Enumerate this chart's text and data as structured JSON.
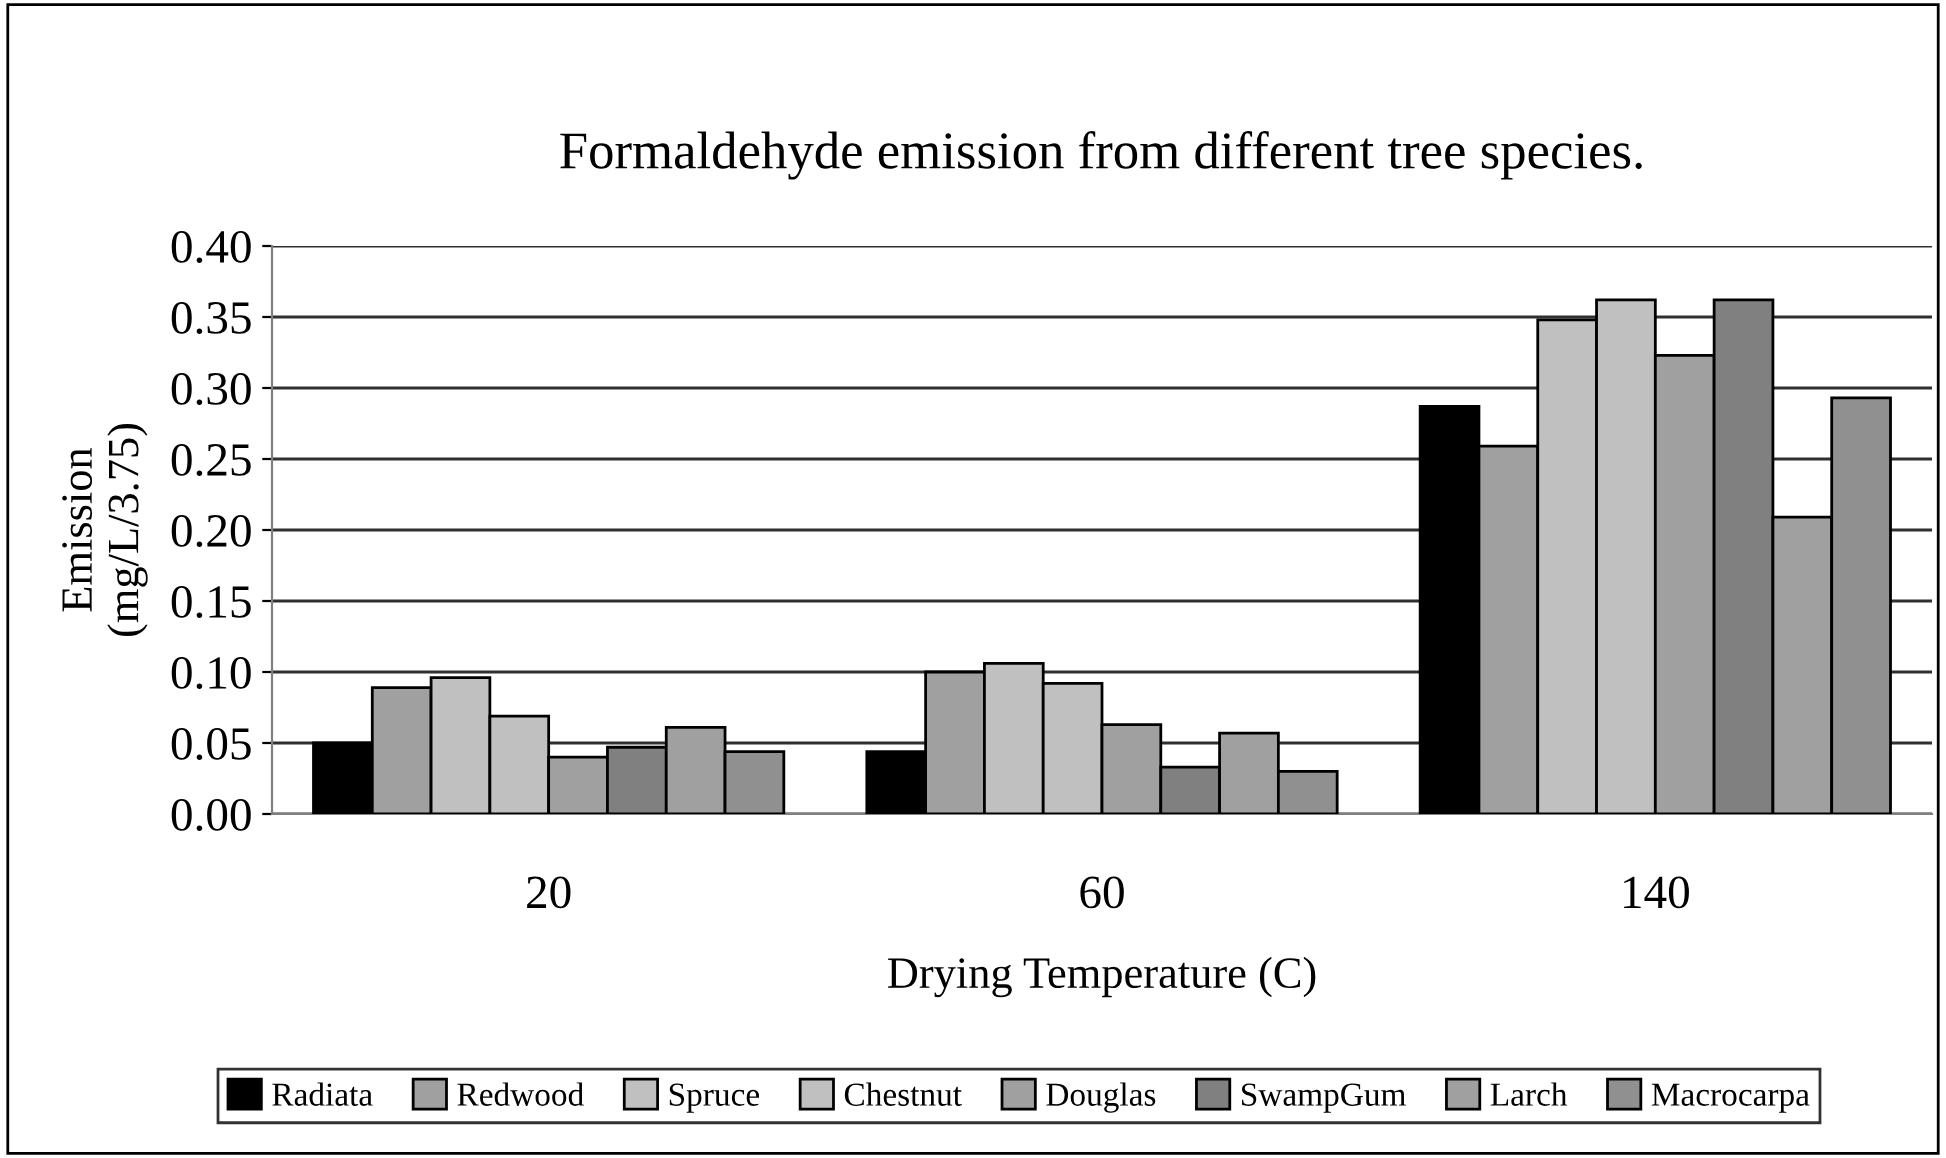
{
  "chart_data": {
    "type": "bar",
    "title": "Formaldehyde emission from different tree species.",
    "xlabel": "Drying Temperature (C)",
    "ylabel": "Emission\n(mg/L/3.75)",
    "categories": [
      "20",
      "60",
      "140"
    ],
    "series": [
      {
        "name": "Radiata",
        "color": "#000000",
        "values": [
          0.05,
          0.044,
          0.287
        ]
      },
      {
        "name": "Redwood",
        "color": "#a0a0a0",
        "values": [
          0.089,
          0.1,
          0.259
        ]
      },
      {
        "name": "Spruce",
        "color": "#c0c0c0",
        "values": [
          0.096,
          0.106,
          0.348
        ]
      },
      {
        "name": "Chestnut",
        "color": "#c0c0c0",
        "values": [
          0.069,
          0.092,
          0.362
        ]
      },
      {
        "name": "Douglas",
        "color": "#a0a0a0",
        "values": [
          0.04,
          0.063,
          0.323
        ]
      },
      {
        "name": "SwampGum",
        "color": "#808080",
        "values": [
          0.047,
          0.033,
          0.362
        ]
      },
      {
        "name": "Larch",
        "color": "#a0a0a0",
        "values": [
          0.061,
          0.057,
          0.209
        ]
      },
      {
        "name": "Macrocarpa",
        "color": "#909090",
        "values": [
          0.044,
          0.03,
          0.293
        ]
      }
    ],
    "ylim": [
      0,
      0.4
    ],
    "yticks": [
      {
        "value": 0,
        "label": "0.00"
      },
      {
        "value": 0.05,
        "label": "0.05"
      },
      {
        "value": 0.1,
        "label": "0.10"
      },
      {
        "value": 0.15,
        "label": "0.15"
      },
      {
        "value": 0.2,
        "label": "0.20"
      },
      {
        "value": 0.25,
        "label": "0.25"
      },
      {
        "value": 0.3,
        "label": "0.30"
      },
      {
        "value": 0.35,
        "label": "0.35"
      },
      {
        "value": 0.4,
        "label": "0.40"
      }
    ],
    "grid": "y",
    "legend": "bottom"
  }
}
